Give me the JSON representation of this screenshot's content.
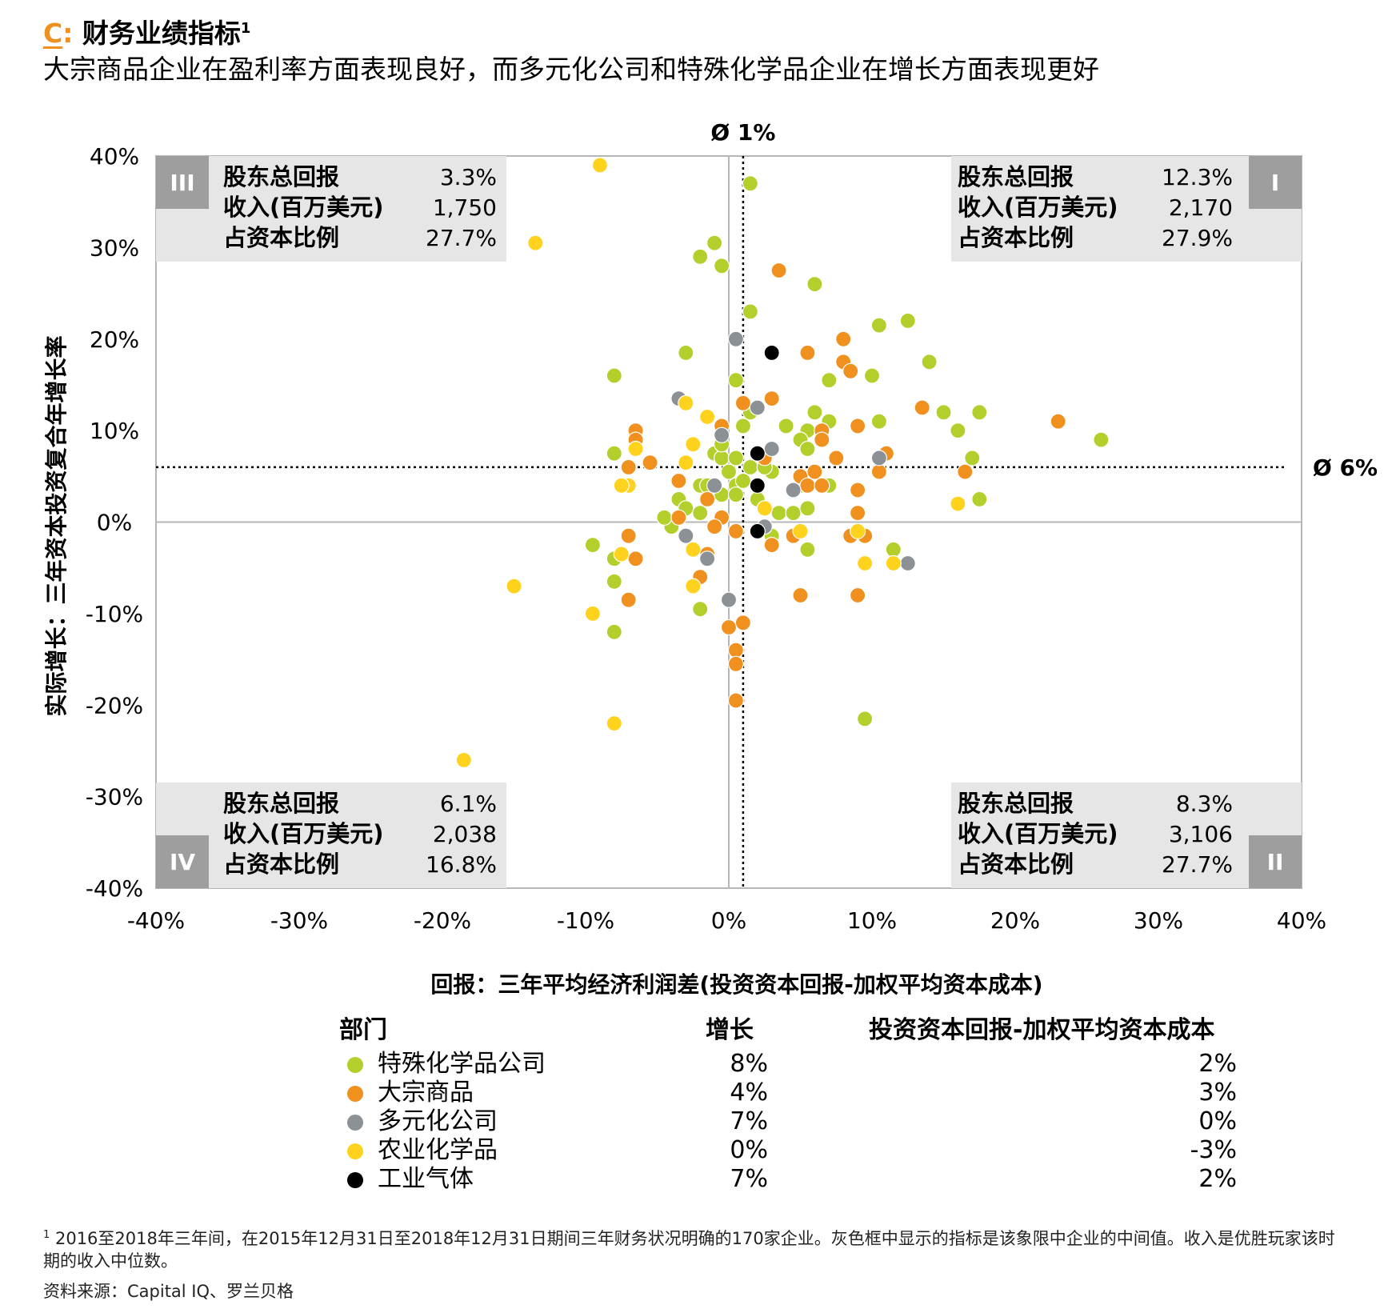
{
  "header": {
    "title_letter": "C",
    "title_colon": ":",
    "title": "财务业绩指标",
    "title_sup": "1",
    "subtitle": "大宗商品企业在盈利率方面表现良好，而多元化公司和特殊化学品企业在增长方面表现更好"
  },
  "chart_data": {
    "type": "scatter",
    "xlabel": "回报：三年平均经济利润差(投资资本回报-加权平均资本成本)",
    "ylabel": "实际增长：三年资本投资复合年增长率",
    "xlim": [
      -40,
      40
    ],
    "ylim": [
      -40,
      40
    ],
    "x_ticks": [
      "-40%",
      "-30%",
      "-20%",
      "-10%",
      "0%",
      "10%",
      "20%",
      "30%",
      "40%"
    ],
    "y_ticks": [
      "40%",
      "30%",
      "20%",
      "10%",
      "0%",
      "-10%",
      "-20%",
      "-30%",
      "-40%"
    ],
    "avg_x": 1,
    "avg_y": 6,
    "avg_x_label": "Ø 1%",
    "avg_y_label": "Ø 6%",
    "quadrants": [
      {
        "id": "III",
        "position": "top-left",
        "rows": [
          {
            "label": "股东总回报",
            "value": "3.3%"
          },
          {
            "label": "收入(百万美元)",
            "value": "1,750"
          },
          {
            "label": "占资本比例",
            "value": "27.7%"
          }
        ]
      },
      {
        "id": "I",
        "position": "top-right",
        "rows": [
          {
            "label": "股东总回报",
            "value": "12.3%"
          },
          {
            "label": "收入(百万美元)",
            "value": "2,170"
          },
          {
            "label": "占资本比例",
            "value": "27.9%"
          }
        ]
      },
      {
        "id": "IV",
        "position": "bottom-left",
        "rows": [
          {
            "label": "股东总回报",
            "value": "6.1%"
          },
          {
            "label": "收入(百万美元)",
            "value": "2,038"
          },
          {
            "label": "占资本比例",
            "value": "16.8%"
          }
        ]
      },
      {
        "id": "II",
        "position": "bottom-right",
        "rows": [
          {
            "label": "股东总回报",
            "value": "8.3%"
          },
          {
            "label": "收入(百万美元)",
            "value": "3,106"
          },
          {
            "label": "占资本比例",
            "value": "27.7%"
          }
        ]
      }
    ],
    "series": [
      {
        "name": "特殊化学品公司",
        "color": "#b3cf2c",
        "points": [
          [
            1.5,
            37
          ],
          [
            -1,
            30.5
          ],
          [
            -2,
            29
          ],
          [
            -0.5,
            28
          ],
          [
            6,
            26
          ],
          [
            1.5,
            23
          ],
          [
            12.5,
            22
          ],
          [
            10.5,
            21.5
          ],
          [
            -3,
            18.5
          ],
          [
            14,
            17.5
          ],
          [
            10,
            16
          ],
          [
            7,
            15.5
          ],
          [
            0.5,
            15.5
          ],
          [
            -8,
            16
          ],
          [
            6,
            12
          ],
          [
            17.5,
            12
          ],
          [
            15,
            12
          ],
          [
            7,
            11
          ],
          [
            10.5,
            11
          ],
          [
            4,
            10.5
          ],
          [
            1,
            10.5
          ],
          [
            5.5,
            10
          ],
          [
            16,
            10
          ],
          [
            5,
            9
          ],
          [
            26,
            9
          ],
          [
            5.5,
            8
          ],
          [
            -1,
            7.5
          ],
          [
            -8,
            7.5
          ],
          [
            -0.5,
            7
          ],
          [
            0.5,
            7
          ],
          [
            17,
            7
          ],
          [
            0,
            5.5
          ],
          [
            3,
            5.5
          ],
          [
            1.5,
            6
          ],
          [
            2.5,
            6
          ],
          [
            -2,
            4
          ],
          [
            -1.5,
            4
          ],
          [
            0.5,
            4
          ],
          [
            -0.5,
            3
          ],
          [
            0.5,
            3
          ],
          [
            5,
            4
          ],
          [
            7,
            4
          ],
          [
            -3.5,
            2.5
          ],
          [
            -3,
            1.5
          ],
          [
            -2,
            1
          ],
          [
            2,
            2.5
          ],
          [
            -4,
            -0.5
          ],
          [
            -4.5,
            0.5
          ],
          [
            3.5,
            1
          ],
          [
            4.5,
            1
          ],
          [
            5.5,
            1.5
          ],
          [
            17.5,
            2.5
          ],
          [
            -9.5,
            -2.5
          ],
          [
            -8,
            -4
          ],
          [
            3,
            -1.5
          ],
          [
            5.5,
            -3
          ],
          [
            11.5,
            -3
          ],
          [
            -8,
            -6.5
          ],
          [
            -2,
            -9.5
          ],
          [
            -8,
            -12
          ],
          [
            9.5,
            -21.5
          ],
          [
            1.5,
            12
          ],
          [
            1,
            4.5
          ],
          [
            -0.5,
            8.5
          ]
        ]
      },
      {
        "name": "大宗商品",
        "color": "#f0901e",
        "points": [
          [
            3.5,
            27.5
          ],
          [
            8,
            20
          ],
          [
            5.5,
            18.5
          ],
          [
            8,
            17.5
          ],
          [
            8.5,
            16.5
          ],
          [
            1,
            13
          ],
          [
            3,
            13.5
          ],
          [
            13.5,
            12.5
          ],
          [
            23,
            11
          ],
          [
            -6.5,
            10
          ],
          [
            -0.5,
            10.5
          ],
          [
            6.5,
            10
          ],
          [
            9,
            10.5
          ],
          [
            -6.5,
            9
          ],
          [
            6.5,
            9
          ],
          [
            2.5,
            7
          ],
          [
            7.5,
            7
          ],
          [
            11,
            7.5
          ],
          [
            -7,
            6
          ],
          [
            -5.5,
            6.5
          ],
          [
            10.5,
            5.5
          ],
          [
            16.5,
            5.5
          ],
          [
            5,
            5
          ],
          [
            6,
            5.5
          ],
          [
            -3.5,
            4.5
          ],
          [
            5.5,
            4
          ],
          [
            6.5,
            4
          ],
          [
            9,
            3.5
          ],
          [
            -1.5,
            2.5
          ],
          [
            2.5,
            1.5
          ],
          [
            -3.5,
            0.5
          ],
          [
            -0.5,
            0.5
          ],
          [
            9,
            1
          ],
          [
            -1,
            -0.5
          ],
          [
            0.5,
            -1
          ],
          [
            4.5,
            -1.5
          ],
          [
            8.5,
            -1.5
          ],
          [
            9.5,
            -1.5
          ],
          [
            -7,
            -1.5
          ],
          [
            3,
            -2.5
          ],
          [
            -1.5,
            -3.5
          ],
          [
            -6.5,
            -4
          ],
          [
            -2,
            -6
          ],
          [
            -7,
            -8.5
          ],
          [
            5,
            -8
          ],
          [
            9,
            -8
          ],
          [
            0,
            -11.5
          ],
          [
            1,
            -11
          ],
          [
            0.5,
            -14
          ],
          [
            0.5,
            -15.5
          ],
          [
            0.5,
            -19.5
          ]
        ]
      },
      {
        "name": "多元化公司",
        "color": "#8c9196",
        "points": [
          [
            0.5,
            20
          ],
          [
            -3.5,
            13.5
          ],
          [
            2,
            12.5
          ],
          [
            -0.5,
            9.5
          ],
          [
            3,
            8
          ],
          [
            10.5,
            7
          ],
          [
            -1,
            4
          ],
          [
            4.5,
            3.5
          ],
          [
            -3,
            -1.5
          ],
          [
            -1.5,
            -4
          ],
          [
            12.5,
            -4.5
          ],
          [
            2.5,
            -0.5
          ],
          [
            0,
            -8.5
          ]
        ]
      },
      {
        "name": "农业化学品",
        "color": "#ffd21e",
        "points": [
          [
            -9,
            39
          ],
          [
            -13.5,
            30.5
          ],
          [
            -3,
            13
          ],
          [
            -1.5,
            11.5
          ],
          [
            -2.5,
            8.5
          ],
          [
            -6.5,
            8
          ],
          [
            -3,
            6.5
          ],
          [
            -7,
            4
          ],
          [
            -7.5,
            4
          ],
          [
            2.5,
            1.5
          ],
          [
            5,
            -1
          ],
          [
            9,
            -1
          ],
          [
            16,
            2
          ],
          [
            11.5,
            -4.5
          ],
          [
            9.5,
            -4.5
          ],
          [
            -2.5,
            -3
          ],
          [
            -7.5,
            -3.5
          ],
          [
            -2.5,
            -7
          ],
          [
            -9.5,
            -10
          ],
          [
            -15,
            -7
          ],
          [
            -8,
            -22
          ],
          [
            -18.5,
            -26
          ]
        ]
      },
      {
        "name": "工业气体",
        "color": "#000000",
        "points": [
          [
            3,
            18.5
          ],
          [
            2,
            7.5
          ],
          [
            2,
            4
          ],
          [
            2,
            -1
          ]
        ]
      }
    ]
  },
  "legend": {
    "col_segment": "部门",
    "col_growth": "增长",
    "col_spread": "投资资本回报-加权平均资本成本",
    "rows": [
      {
        "name": "特殊化学品公司",
        "color": "#b3cf2c",
        "growth": "8%",
        "spread": "2%"
      },
      {
        "name": "大宗商品",
        "color": "#f0901e",
        "growth": "4%",
        "spread": "3%"
      },
      {
        "name": "多元化公司",
        "color": "#8c9196",
        "growth": "7%",
        "spread": "0%"
      },
      {
        "name": "农业化学品",
        "color": "#ffd21e",
        "growth": "0%",
        "spread": "-3%"
      },
      {
        "name": "工业气体",
        "color": "#000000",
        "growth": "7%",
        "spread": "2%"
      }
    ]
  },
  "footnote": {
    "sup": "1",
    "text": "2016至2018年三年间，在2015年12月31日至2018年12月31日期间三年财务状况明确的170家企业。灰色框中显示的指标是该象限中企业的中间值。收入是优胜玩家该时期的收入中位数。"
  },
  "source": "资料来源：Capital IQ、罗兰贝格"
}
